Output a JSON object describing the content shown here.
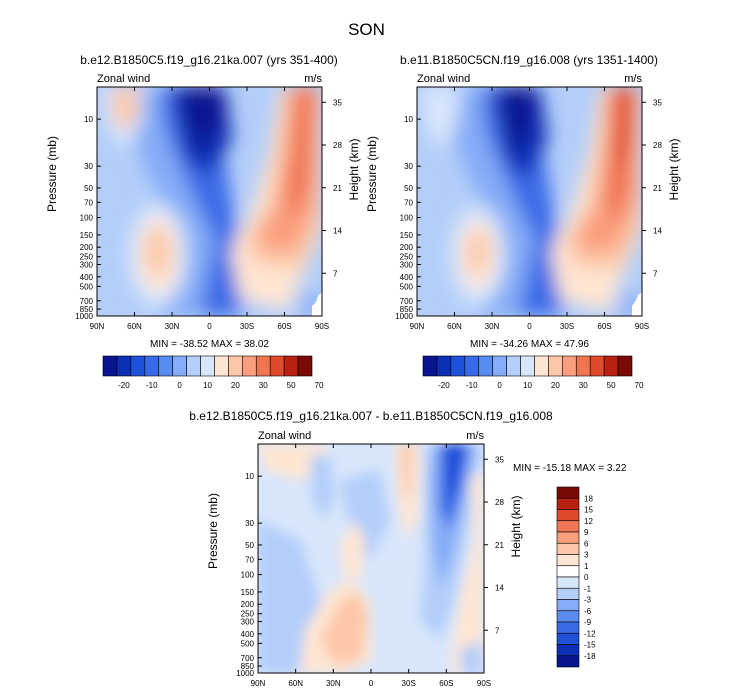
{
  "figure": {
    "title": "SON"
  },
  "colors": {
    "main_levels": [
      "#08158f",
      "#0b2fb5",
      "#1e50d8",
      "#3a6ae7",
      "#5a8bf0",
      "#84acf7",
      "#b3cef9",
      "#d8e6fb",
      "#ffe6d3",
      "#fdc8a9",
      "#f99f7e",
      "#f07553",
      "#e04a2c",
      "#b8200f",
      "#7a0a05"
    ],
    "diff_levels": [
      "#08158f",
      "#0b2fb5",
      "#1e50d8",
      "#3a6ae7",
      "#5a8bf0",
      "#84acf7",
      "#b3cef9",
      "#d8e6fb",
      "#ffffff",
      "#ffe6d3",
      "#fdc8a9",
      "#f99f7e",
      "#f07553",
      "#e04a2c",
      "#b8200f",
      "#7a0a05"
    ]
  },
  "chart_data": [
    {
      "type": "contour",
      "title": "b.e12.B1850C5.f19_g16.21ka.007 (yrs 351-400)",
      "left_label": "Zonal wind",
      "right_label": "m/s",
      "xlabel": "",
      "ylabel": "Pressure (mb)",
      "ylabel_right": "Height (km)",
      "x_ticks": [
        "90N",
        "60N",
        "30N",
        "0",
        "30S",
        "60S",
        "90S"
      ],
      "y_ticks": [
        1000,
        850,
        700,
        500,
        400,
        300,
        250,
        200,
        150,
        100,
        70,
        50,
        30,
        10
      ],
      "y_ticks_right": [
        7,
        14,
        21,
        28,
        35
      ],
      "stats": "MIN = -38.52  MAX = 38.02",
      "colorbar_labels": [
        "-20",
        "-10",
        "0",
        "10",
        "20",
        "30",
        "50",
        "70"
      ]
    },
    {
      "type": "contour",
      "title": "b.e11.B1850C5CN.f19_g16.008 (yrs 1351-1400)",
      "left_label": "Zonal wind",
      "right_label": "m/s",
      "xlabel": "",
      "ylabel": "Pressure (mb)",
      "ylabel_right": "Height (km)",
      "x_ticks": [
        "90N",
        "60N",
        "30N",
        "0",
        "30S",
        "60S",
        "90S"
      ],
      "y_ticks": [
        1000,
        850,
        700,
        500,
        400,
        300,
        250,
        200,
        150,
        100,
        70,
        50,
        30,
        10
      ],
      "y_ticks_right": [
        7,
        14,
        21,
        28,
        35
      ],
      "stats": "MIN = -34.26  MAX = 47.96",
      "colorbar_labels": [
        "-20",
        "-10",
        "0",
        "10",
        "20",
        "30",
        "50",
        "70"
      ]
    },
    {
      "type": "contour",
      "title": "b.e12.B1850C5.f19_g16.21ka.007 - b.e11.B1850C5CN.f19_g16.008",
      "left_label": "Zonal wind",
      "right_label": "m/s",
      "xlabel": "",
      "ylabel": "Pressure (mb)",
      "ylabel_right": "Height (km)",
      "x_ticks": [
        "90N",
        "60N",
        "30N",
        "0",
        "30S",
        "60S",
        "90S"
      ],
      "y_ticks": [
        1000,
        850,
        700,
        500,
        400,
        300,
        250,
        200,
        150,
        100,
        70,
        50,
        30,
        10
      ],
      "y_ticks_right": [
        7,
        14,
        21,
        28,
        35
      ],
      "stats": "MIN = -15.18  MAX =   3.22",
      "colorbar_labels": [
        "18",
        "15",
        "12",
        "9",
        "6",
        "3",
        "1",
        "0",
        "-1",
        "-3",
        "-6",
        "-9",
        "-12",
        "-15",
        "-18"
      ]
    }
  ]
}
